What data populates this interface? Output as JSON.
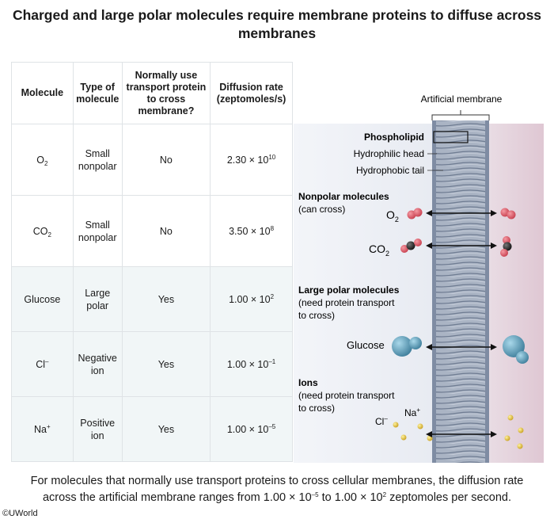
{
  "title": "Charged and large polar molecules require membrane proteins to diffuse across membranes",
  "table": {
    "headers": [
      "Molecule",
      "Type of molecule",
      "Normally use transport protein to cross membrane?",
      "Diffusion rate (zeptomoles/s)"
    ],
    "rows": [
      {
        "molecule": "O",
        "mol_sub": "2",
        "mol_sup": "",
        "type": "Small nonpolar",
        "transport": "No",
        "rate_base": "2.30 × 10",
        "rate_exp": "10"
      },
      {
        "molecule": "CO",
        "mol_sub": "2",
        "mol_sup": "",
        "type": "Small nonpolar",
        "transport": "No",
        "rate_base": "3.50 × 10",
        "rate_exp": "8"
      },
      {
        "molecule": "Glucose",
        "mol_sub": "",
        "mol_sup": "",
        "type": "Large polar",
        "transport": "Yes",
        "rate_base": "1.00 × 10",
        "rate_exp": "2"
      },
      {
        "molecule": "Cl",
        "mol_sub": "",
        "mol_sup": "–",
        "type": "Negative ion",
        "transport": "Yes",
        "rate_base": "1.00 × 10",
        "rate_exp": "–1"
      },
      {
        "molecule": "Na",
        "mol_sub": "",
        "mol_sup": "+",
        "type": "Positive ion",
        "transport": "Yes",
        "rate_base": "1.00 × 10",
        "rate_exp": "–5"
      }
    ]
  },
  "diagram": {
    "membrane_label": "Artificial membrane",
    "phospholipid": "Phospholipid",
    "hydrophilic_head": "Hydrophilic head",
    "hydrophobic_tail": "Hydrophobic tail",
    "nonpolar_title": "Nonpolar molecules",
    "nonpolar_sub": "(can cross)",
    "o2_label": "O",
    "o2_sub": "2",
    "co2_label": "CO",
    "co2_sub": "2",
    "polar_title": "Large polar molecules",
    "polar_sub1": "(need protein transport",
    "polar_sub2": "to cross)",
    "glucose_label": "Glucose",
    "ions_title": "Ions",
    "ions_sub1": "(need protein transport",
    "ions_sub2": "to cross)",
    "cl_label": "Cl",
    "cl_sup": "–",
    "na_label": "Na",
    "na_sup": "+"
  },
  "note": {
    "line1": "For molecules that normally use transport proteins to cross cellular membranes, the diffusion rate",
    "line2_a": "across the artificial membrane ranges from 1.00 × 10",
    "line2_exp1": "–5",
    "line2_b": " to 1.00 × 10",
    "line2_exp2": "2",
    "line2_c": " zeptomoles per second."
  },
  "copyright": "©UWorld",
  "colors": {
    "left_bg": "#eaedf3",
    "right_bg": "#e6d4dc",
    "membrane": "#8b98ad",
    "oxygen": "#e05c6a",
    "carbon": "#333333",
    "glucose": "#6aa8c2",
    "ion": "#e0c040"
  }
}
